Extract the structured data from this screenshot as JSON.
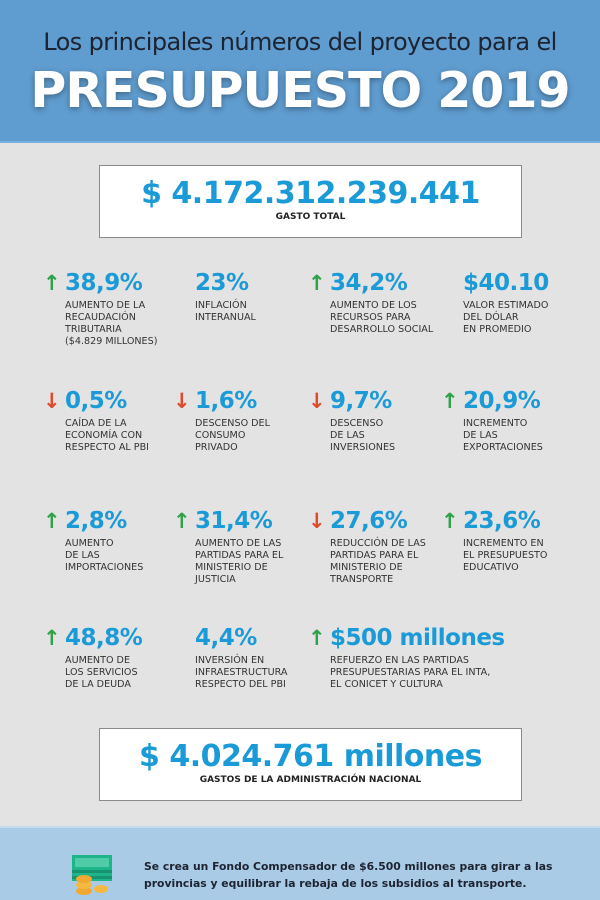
{
  "header": {
    "subtitle": "Los principales números del proyecto para el",
    "title": "PRESUPUESTO 2019"
  },
  "total": {
    "value": "$ 4.172.312.239.441",
    "caption": "GASTO TOTAL"
  },
  "stats": [
    {
      "value": "38,9%",
      "trend": "up",
      "label": "AUMENTO DE LA\nRECAUDACIÓN\nTRIBUTARIA\n($4.829 MILLONES)"
    },
    {
      "value": "23%",
      "trend": "none",
      "label": "INFLACIÓN\nINTERANUAL"
    },
    {
      "value": "34,2%",
      "trend": "up",
      "label": "AUMENTO DE LOS\nRECURSOS PARA\nDESARROLLO SOCIAL"
    },
    {
      "value": "$40.10",
      "trend": "none",
      "label": "VALOR ESTIMADO\nDEL DÓLAR\nEN PROMEDIO"
    },
    {
      "value": "0,5%",
      "trend": "down",
      "label": "CAÍDA DE LA\nECONOMÍA CON\nRESPECTO AL PBI"
    },
    {
      "value": "1,6%",
      "trend": "down",
      "label": "DESCENSO DEL\nCONSUMO\nPRIVADO"
    },
    {
      "value": "9,7%",
      "trend": "down",
      "label": "DESCENSO\nDE LAS\nINVERSIONES"
    },
    {
      "value": "20,9%",
      "trend": "up",
      "label": "INCREMENTO\nDE LAS\nEXPORTACIONES"
    },
    {
      "value": "2,8%",
      "trend": "up",
      "label": "AUMENTO\nDE LAS\nIMPORTACIONES"
    },
    {
      "value": "31,4%",
      "trend": "up",
      "label": "AUMENTO DE LAS\nPARTIDAS PARA EL\nMINISTERIO DE\nJUSTICIA"
    },
    {
      "value": "27,6%",
      "trend": "down",
      "label": "REDUCCIÓN DE LAS\nPARTIDAS PARA EL\nMINISTERIO DE\nTRANSPORTE"
    },
    {
      "value": "23,6%",
      "trend": "up",
      "label": "INCREMENTO EN\nEL PRESUPUESTO\nEDUCATIVO"
    },
    {
      "value": "48,8%",
      "trend": "up",
      "label": "AUMENTO DE\nLOS SERVICIOS\nDE LA DEUDA"
    },
    {
      "value": "4,4%",
      "trend": "none",
      "label": "INVERSIÓN EN\nINFRAESTRUCTURA\nRESPECTO DEL PBI"
    },
    {
      "value": "$500 millones",
      "trend": "up",
      "label": "REFUERZO EN LAS PARTIDAS\nPRESUPUESTARIAS PARA EL INTA,\nEL CONICET Y CULTURA"
    }
  ],
  "admin": {
    "value": "$ 4.024.761 millones",
    "caption": "GASTOS DE LA ADMINISTRACIÓN NACIONAL"
  },
  "footer": {
    "icon": "money-coins-icon",
    "text": "Se crea un Fondo Compensador de $6.500 millones para girar a las provincias y equilibrar la rebaja de los subsidios al transporte."
  },
  "colors": {
    "header": "#5f9ccf",
    "accent": "#1a9ad6",
    "up": "#2ea24a",
    "down": "#e0492b",
    "footer": "#a9cbe6"
  }
}
